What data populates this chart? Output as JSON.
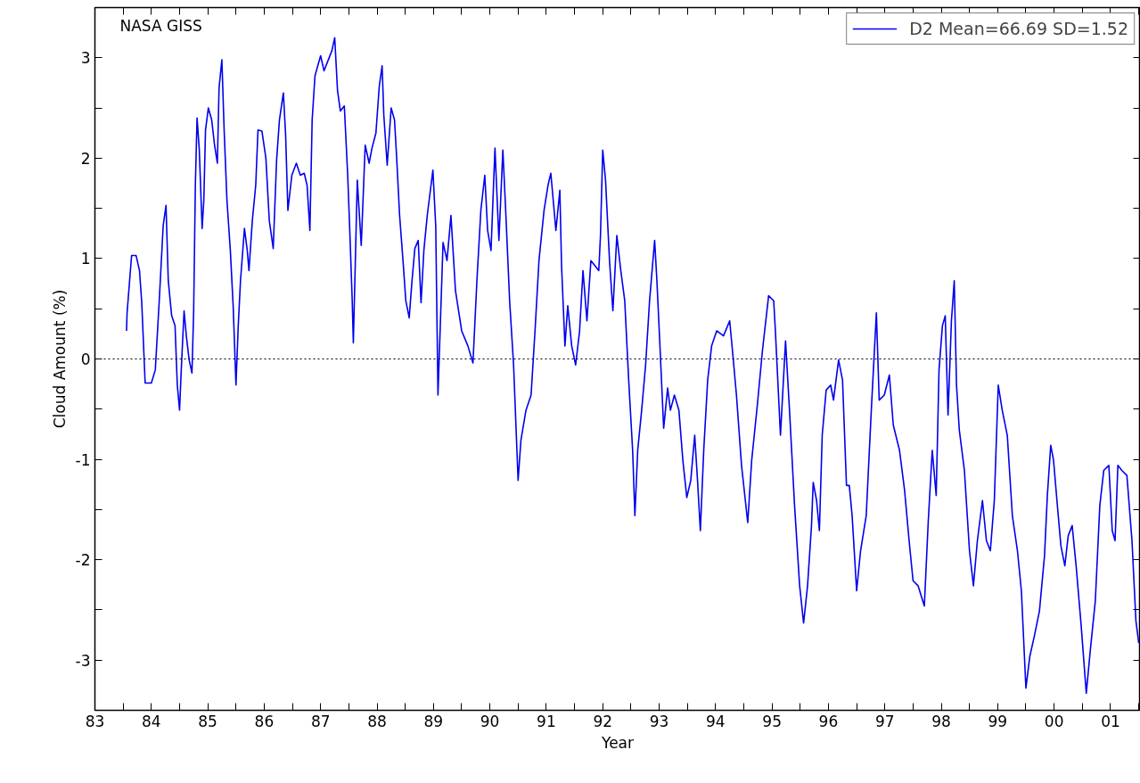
{
  "chart_data": {
    "type": "line",
    "xlabel": "Year",
    "ylabel": "Cloud Amount (%)",
    "annotations": [
      "NASA GISS"
    ],
    "xlim": [
      1983,
      2001.53
    ],
    "ylim": [
      -3.5,
      3.5
    ],
    "xticks": [
      {
        "value": 1983,
        "label": "83"
      },
      {
        "value": 1983.5,
        "label": null
      },
      {
        "value": 1984,
        "label": "84"
      },
      {
        "value": 1984.5,
        "label": null
      },
      {
        "value": 1985,
        "label": "85"
      },
      {
        "value": 1985.5,
        "label": null
      },
      {
        "value": 1986,
        "label": "86"
      },
      {
        "value": 1986.5,
        "label": null
      },
      {
        "value": 1987,
        "label": "87"
      },
      {
        "value": 1987.5,
        "label": null
      },
      {
        "value": 1988,
        "label": "88"
      },
      {
        "value": 1988.5,
        "label": null
      },
      {
        "value": 1989,
        "label": "89"
      },
      {
        "value": 1989.5,
        "label": null
      },
      {
        "value": 1990,
        "label": "90"
      },
      {
        "value": 1990.5,
        "label": null
      },
      {
        "value": 1991,
        "label": "91"
      },
      {
        "value": 1991.5,
        "label": null
      },
      {
        "value": 1992,
        "label": "92"
      },
      {
        "value": 1992.5,
        "label": null
      },
      {
        "value": 1993,
        "label": "93"
      },
      {
        "value": 1993.5,
        "label": null
      },
      {
        "value": 1994,
        "label": "94"
      },
      {
        "value": 1994.5,
        "label": null
      },
      {
        "value": 1995,
        "label": "95"
      },
      {
        "value": 1995.5,
        "label": null
      },
      {
        "value": 1996,
        "label": "96"
      },
      {
        "value": 1996.5,
        "label": null
      },
      {
        "value": 1997,
        "label": "97"
      },
      {
        "value": 1997.5,
        "label": null
      },
      {
        "value": 1998,
        "label": "98"
      },
      {
        "value": 1998.5,
        "label": null
      },
      {
        "value": 1999,
        "label": "99"
      },
      {
        "value": 1999.5,
        "label": null
      },
      {
        "value": 2000,
        "label": "00"
      },
      {
        "value": 2000.5,
        "label": null
      },
      {
        "value": 2001,
        "label": "01"
      },
      {
        "value": 2001.5,
        "label": null
      }
    ],
    "yticks": [
      -3,
      {
        "value": -2.5,
        "label": null
      },
      -2,
      {
        "value": -1.5,
        "label": null
      },
      -1,
      {
        "value": -0.5,
        "label": null
      },
      0,
      {
        "value": 0.5,
        "label": null
      },
      1,
      {
        "value": 1.5,
        "label": null
      },
      2,
      {
        "value": 2.5,
        "label": null
      },
      3
    ],
    "ref_lines": [
      {
        "axis": "y",
        "value": 0,
        "label": null,
        "color": "#000000",
        "line_style": "dotted"
      }
    ],
    "grid": false,
    "legend": "top right",
    "marker": "none",
    "line_style": "solid",
    "series": [
      {
        "name": "D2 Mean=66.69 SD=1.52",
        "color": "#0000ee",
        "x": [
          1983.56,
          1983.57,
          1983.65,
          1983.73,
          1983.79,
          1983.83,
          1983.89,
          1984.0,
          1984.07,
          1984.14,
          1984.21,
          1984.26,
          1984.3,
          1984.36,
          1984.42,
          1984.46,
          1984.5,
          1984.53,
          1984.58,
          1984.62,
          1984.67,
          1984.72,
          1984.75,
          1984.78,
          1984.81,
          1984.85,
          1984.9,
          1984.93,
          1984.96,
          1985.01,
          1985.07,
          1985.12,
          1985.17,
          1985.2,
          1985.25,
          1985.29,
          1985.34,
          1985.4,
          1985.45,
          1985.5,
          1985.54,
          1985.58,
          1985.65,
          1985.7,
          1985.73,
          1985.79,
          1985.85,
          1985.89,
          1985.96,
          1986.03,
          1986.09,
          1986.16,
          1986.22,
          1986.27,
          1986.34,
          1986.38,
          1986.42,
          1986.49,
          1986.57,
          1986.64,
          1986.71,
          1986.76,
          1986.81,
          1986.85,
          1986.9,
          1987.0,
          1987.06,
          1987.13,
          1987.2,
          1987.25,
          1987.3,
          1987.35,
          1987.42,
          1987.48,
          1987.52,
          1987.56,
          1987.58,
          1987.62,
          1987.65,
          1987.72,
          1987.79,
          1987.86,
          1987.91,
          1987.98,
          1988.04,
          1988.09,
          1988.12,
          1988.18,
          1988.25,
          1988.31,
          1988.35,
          1988.4,
          1988.46,
          1988.51,
          1988.57,
          1988.62,
          1988.67,
          1988.73,
          1988.78,
          1988.83,
          1988.89,
          1988.99,
          1989.04,
          1989.08,
          1989.17,
          1989.24,
          1989.31,
          1989.39,
          1989.5,
          1989.61,
          1989.7,
          1989.77,
          1989.84,
          1989.91,
          1989.96,
          1990.02,
          1990.09,
          1990.16,
          1990.23,
          1990.28,
          1990.35,
          1990.42,
          1990.5,
          1990.55,
          1990.64,
          1990.73,
          1990.8,
          1990.87,
          1990.96,
          1991.03,
          1991.08,
          1991.17,
          1991.24,
          1991.27,
          1991.33,
          1991.38,
          1991.45,
          1991.52,
          1991.59,
          1991.65,
          1991.72,
          1991.79,
          1991.86,
          1991.93,
          1991.96,
          1992.0,
          1992.05,
          1992.12,
          1992.18,
          1992.25,
          1992.32,
          1992.39,
          1992.46,
          1992.53,
          1992.57,
          1992.62,
          1992.69,
          1992.76,
          1992.83,
          1992.92,
          1992.96,
          1993.01,
          1993.08,
          1993.15,
          1993.2,
          1993.27,
          1993.35,
          1993.42,
          1993.49,
          1993.56,
          1993.63,
          1993.68,
          1993.73,
          1993.79,
          1993.86,
          1993.93,
          1994.02,
          1994.14,
          1994.25,
          1994.3,
          1994.37,
          1994.46,
          1994.57,
          1994.64,
          1994.74,
          1994.83,
          1994.94,
          1995.03,
          1995.06,
          1995.15,
          1995.24,
          1995.31,
          1995.4,
          1995.49,
          1995.56,
          1995.63,
          1995.7,
          1995.73,
          1995.79,
          1995.84,
          1995.89,
          1995.96,
          1996.04,
          1996.09,
          1996.18,
          1996.25,
          1996.32,
          1996.37,
          1996.42,
          1996.5,
          1996.57,
          1996.67,
          1996.76,
          1996.85,
          1996.9,
          1996.99,
          1997.08,
          1997.15,
          1997.26,
          1997.35,
          1997.43,
          1997.5,
          1997.59,
          1997.7,
          1997.77,
          1997.84,
          1997.91,
          1997.96,
          1998.02,
          1998.07,
          1998.12,
          1998.18,
          1998.23,
          1998.27,
          1998.32,
          1998.41,
          1998.5,
          1998.57,
          1998.64,
          1998.73,
          1998.8,
          1998.87,
          1998.94,
          1999.01,
          1999.08,
          1999.17,
          1999.26,
          1999.35,
          1999.42,
          1999.5,
          1999.57,
          1999.65,
          1999.74,
          1999.83,
          1999.88,
          1999.94,
          1999.99,
          2000.05,
          2000.12,
          2000.19,
          2000.25,
          2000.32,
          2000.39,
          2000.48,
          2000.57,
          2000.64,
          2000.73,
          2000.81,
          2000.88,
          2000.97,
          2001.03,
          2001.08,
          2001.13,
          2001.2,
          2001.29,
          2001.38,
          2001.45,
          2001.5
        ],
        "values": [
          0.28,
          0.46,
          1.03,
          1.03,
          0.88,
          0.56,
          -0.24,
          -0.24,
          -0.11,
          0.58,
          1.33,
          1.53,
          0.78,
          0.43,
          0.33,
          -0.26,
          -0.51,
          -0.11,
          0.48,
          0.23,
          -0.01,
          -0.14,
          0.48,
          1.73,
          2.4,
          2.08,
          1.3,
          1.58,
          2.28,
          2.5,
          2.38,
          2.13,
          1.95,
          2.7,
          2.98,
          2.28,
          1.58,
          1.08,
          0.53,
          -0.26,
          0.33,
          0.78,
          1.3,
          1.08,
          0.88,
          1.38,
          1.73,
          2.28,
          2.27,
          2.0,
          1.38,
          1.1,
          1.98,
          2.38,
          2.65,
          2.23,
          1.48,
          1.83,
          1.95,
          1.83,
          1.85,
          1.73,
          1.28,
          2.38,
          2.82,
          3.02,
          2.87,
          2.97,
          3.07,
          3.2,
          2.67,
          2.47,
          2.52,
          1.83,
          1.23,
          0.58,
          0.16,
          1.08,
          1.78,
          1.13,
          2.13,
          1.95,
          2.1,
          2.25,
          2.72,
          2.92,
          2.43,
          1.93,
          2.5,
          2.38,
          1.98,
          1.43,
          0.98,
          0.58,
          0.41,
          0.78,
          1.1,
          1.18,
          0.56,
          1.08,
          1.43,
          1.88,
          1.33,
          -0.36,
          1.16,
          0.98,
          1.43,
          0.68,
          0.28,
          0.13,
          -0.04,
          0.78,
          1.48,
          1.83,
          1.28,
          1.08,
          2.1,
          1.18,
          2.08,
          1.48,
          0.58,
          -0.06,
          -1.21,
          -0.81,
          -0.51,
          -0.36,
          0.28,
          0.98,
          1.48,
          1.73,
          1.85,
          1.28,
          1.68,
          0.93,
          0.13,
          0.53,
          0.13,
          -0.06,
          0.28,
          0.88,
          0.38,
          0.98,
          0.93,
          0.88,
          1.23,
          2.08,
          1.78,
          0.98,
          0.48,
          1.23,
          0.88,
          0.58,
          -0.21,
          -0.91,
          -1.56,
          -0.91,
          -0.51,
          -0.06,
          0.58,
          1.18,
          0.78,
          0.18,
          -0.69,
          -0.29,
          -0.51,
          -0.36,
          -0.51,
          -1.01,
          -1.38,
          -1.21,
          -0.76,
          -1.21,
          -1.71,
          -0.91,
          -0.21,
          0.13,
          0.28,
          0.23,
          0.38,
          0.08,
          -0.36,
          -1.06,
          -1.63,
          -1.01,
          -0.46,
          0.08,
          0.63,
          0.58,
          0.28,
          -0.76,
          0.18,
          -0.51,
          -1.46,
          -2.26,
          -2.63,
          -2.26,
          -1.66,
          -1.23,
          -1.41,
          -1.71,
          -0.76,
          -0.31,
          -0.26,
          -0.41,
          -0.01,
          -0.21,
          -1.26,
          -1.26,
          -1.56,
          -2.31,
          -1.91,
          -1.56,
          -0.51,
          0.46,
          -0.41,
          -0.36,
          -0.16,
          -0.66,
          -0.91,
          -1.31,
          -1.81,
          -2.21,
          -2.26,
          -2.46,
          -1.61,
          -0.91,
          -1.36,
          -0.11,
          0.33,
          0.43,
          -0.56,
          0.38,
          0.78,
          -0.26,
          -0.71,
          -1.11,
          -1.91,
          -2.26,
          -1.81,
          -1.41,
          -1.81,
          -1.91,
          -1.41,
          -0.26,
          -0.51,
          -0.76,
          -1.56,
          -1.91,
          -2.31,
          -3.28,
          -2.96,
          -2.76,
          -2.51,
          -1.96,
          -1.36,
          -0.86,
          -1.01,
          -1.41,
          -1.86,
          -2.06,
          -1.76,
          -1.66,
          -2.06,
          -2.66,
          -3.33,
          -2.91,
          -2.41,
          -1.46,
          -1.11,
          -1.06,
          -1.71,
          -1.81,
          -1.06,
          -1.11,
          -1.16,
          -1.81,
          -2.61,
          -2.83
        ]
      }
    ]
  }
}
